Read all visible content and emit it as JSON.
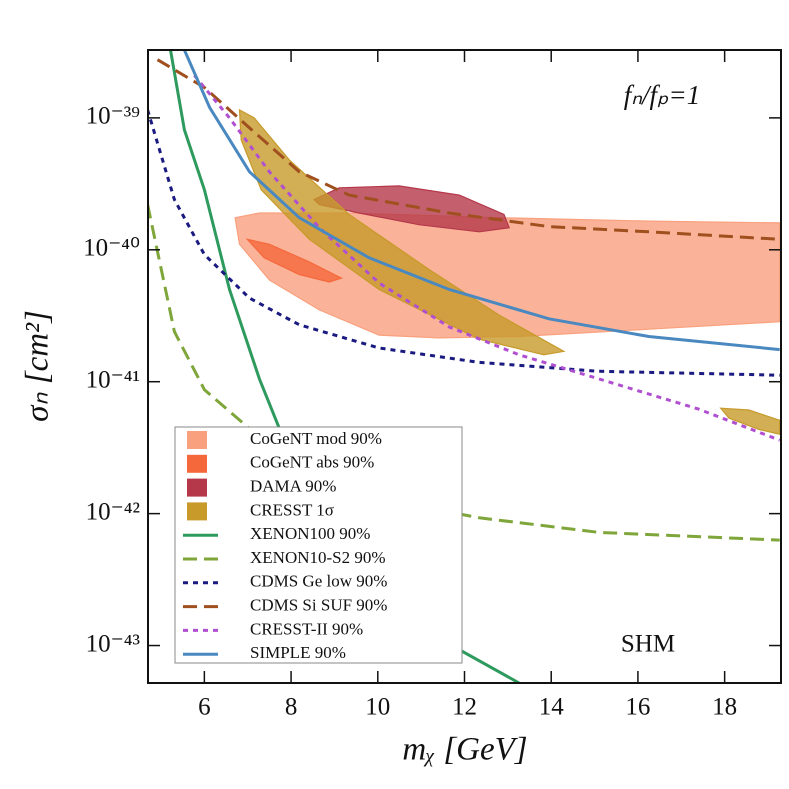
{
  "chart_data": {
    "type": "line",
    "xlabel": "mᵪ [GeV]",
    "ylabel": "σₙ [cm²]",
    "annotations": [
      "fₙ/fₚ=1",
      "SHM"
    ],
    "xlim": [
      4.7,
      19.3
    ],
    "xticks": [
      6,
      8,
      10,
      12,
      14,
      16,
      18
    ],
    "ylim": [
      5.2e-44,
      3.27e-39
    ],
    "yscale": "log",
    "yticks": [
      {
        "value": 1e-39,
        "label": "10⁻³⁹"
      },
      {
        "value": 1e-40,
        "label": "10⁻⁴⁰"
      },
      {
        "value": 1e-41,
        "label": "10⁻⁴¹"
      },
      {
        "value": 1e-42,
        "label": "10⁻⁴²"
      },
      {
        "value": 1e-43,
        "label": "10⁻⁴³"
      }
    ],
    "legend": "lower left",
    "series": [
      {
        "name": "CoGeNT mod 90%",
        "color": "#f9a07e",
        "style": "filled",
        "x": [
          6.71,
          7.27,
          9.34,
          12.8,
          16.25,
          19.27,
          19.27,
          16.25,
          13.26,
          11.41,
          10.03,
          8.65,
          7.5,
          6.81
        ],
        "values": [
          1.75e-40,
          1.9e-40,
          1.9e-40,
          1.75e-40,
          1.65e-40,
          1.6e-40,
          2.85e-41,
          2.5e-41,
          2.2e-41,
          2.15e-41,
          2.25e-41,
          3.5e-41,
          5.9e-41,
          1.1e-40
        ]
      },
      {
        "name": "CoGeNT abs 90%",
        "color": "#f5683c",
        "style": "filled",
        "x": [
          6.99,
          7.5,
          8.42,
          9.16,
          8.88,
          8.19,
          7.38
        ],
        "values": [
          1.2e-40,
          1.1e-40,
          8.1e-41,
          6.1e-41,
          5.7e-41,
          6.5e-41,
          8.7e-41
        ]
      },
      {
        "name": "DAMA 90%",
        "color": "#b5384a",
        "style": "filled",
        "x": [
          8.53,
          9.11,
          10.49,
          11.88,
          12.91,
          13.03,
          12.34,
          10.95,
          9.57,
          8.65
        ],
        "values": [
          2.4e-40,
          2.95e-40,
          3.05e-40,
          2.6e-40,
          1.85e-40,
          1.47e-40,
          1.37e-40,
          1.55e-40,
          1.9e-40,
          2.2e-40
        ]
      },
      {
        "name": "CRESST 1σ",
        "color": "#c79a2a",
        "style": "filled",
        "x": [
          6.81,
          7.15,
          7.96,
          9.34,
          11.18,
          12.8,
          14.29,
          13.83,
          12.34,
          10.03,
          8.42,
          7.31,
          6.85,
          null,
          17.91,
          18.56,
          19.27,
          19.27,
          18.79,
          18.1
        ],
        "values": [
          1.15e-39,
          1e-39,
          4.8e-40,
          1.85e-40,
          7.1e-41,
          3.2e-41,
          1.7e-41,
          1.6e-41,
          2.1e-41,
          5e-41,
          1.2e-40,
          2.85e-40,
          6.8e-40,
          null,
          6.3e-42,
          6.1e-42,
          5.1e-42,
          4e-42,
          4.35e-42,
          5.3e-42
        ]
      },
      {
        "name": "XENON100 90%",
        "color": "#2e9a5e",
        "style": "solid",
        "x": [
          5.22,
          5.54,
          6,
          6.58,
          7.27,
          7.84,
          8.88,
          10.49,
          11.88,
          13.26
        ],
        "values": [
          3.27e-39,
          8.1e-40,
          2.85e-40,
          5e-41,
          1.05e-41,
          3.6e-42,
          7.6e-43,
          1.9e-43,
          9.3e-44,
          5.2e-44
        ]
      },
      {
        "name": "XENON10-S2 90%",
        "color": "#7fa63a",
        "style": "dashed",
        "x": [
          4.69,
          5.31,
          6,
          7.04,
          8.19,
          10.03,
          12.34,
          15.1,
          19.27
        ],
        "values": [
          2.2e-40,
          2.4e-41,
          8.7e-42,
          4.4e-42,
          2.3e-42,
          1.3e-42,
          9.3e-43,
          7.2e-43,
          6.3e-43
        ]
      },
      {
        "name": "CDMS Ge low 90%",
        "color": "#1a1a80",
        "style": "dotted",
        "x": [
          4.69,
          5.31,
          6,
          7.04,
          8.19,
          10.03,
          12.34,
          15.1,
          19.27
        ],
        "values": [
          1.15e-39,
          2.4e-40,
          9.2e-41,
          4.3e-41,
          2.7e-41,
          1.8e-41,
          1.4e-41,
          1.2e-41,
          1.12e-41
        ]
      },
      {
        "name": "CDMS Si SUF 90%",
        "color": "#a0501e",
        "style": "dashed",
        "x": [
          4.92,
          6,
          7.04,
          8.19,
          9.34,
          11.65,
          13.95,
          16.25,
          19.27
        ],
        "values": [
          2.76e-39,
          1.7e-39,
          8.4e-40,
          3.9e-40,
          2.6e-40,
          1.9e-40,
          1.5e-40,
          1.37e-40,
          1.2e-40
        ]
      },
      {
        "name": "CRESST-II 90%",
        "color": "#b050d0",
        "style": "dotted",
        "x": [
          5.77,
          6.58,
          7.5,
          8.65,
          10.03,
          11.65,
          13.26,
          15.1,
          17.4,
          19.27
        ],
        "values": [
          2.1e-39,
          1e-39,
          3.9e-40,
          1.47e-40,
          5.6e-41,
          2.6e-41,
          1.6e-41,
          1.05e-41,
          6.2e-42,
          3.6e-42
        ]
      },
      {
        "name": "SIMPLE 90%",
        "color": "#4a88c0",
        "style": "solid",
        "x": [
          5.54,
          6.12,
          7.04,
          8.19,
          9.8,
          11.65,
          13.95,
          16.25,
          19.27
        ],
        "values": [
          3.27e-39,
          1.2e-39,
          3.9e-40,
          1.75e-40,
          8.7e-41,
          5e-41,
          3e-41,
          2.2e-41,
          1.75e-41
        ]
      }
    ]
  }
}
